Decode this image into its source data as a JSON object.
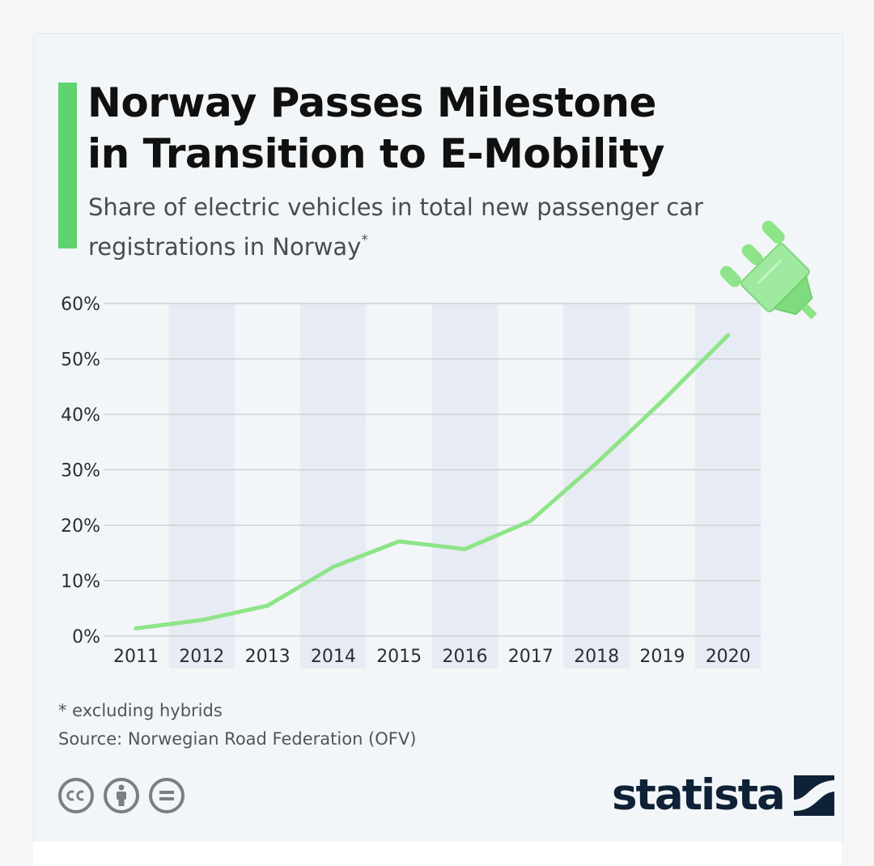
{
  "header": {
    "title_line1": "Norway Passes Milestone",
    "title_line2": "in Transition to E-Mobility",
    "subtitle_line1": "Share of electric vehicles in total new passenger car",
    "subtitle_line2": "registrations in Norway",
    "subtitle_mark": "*"
  },
  "chart_data": {
    "type": "line",
    "title": "Norway Passes Milestone in Transition to E-Mobility",
    "subtitle": "Share of electric vehicles in total new passenger car registrations in Norway*",
    "x": [
      "2011",
      "2012",
      "2013",
      "2014",
      "2015",
      "2016",
      "2017",
      "2018",
      "2019",
      "2020"
    ],
    "series": [
      {
        "values": [
          1.4,
          2.9,
          5.5,
          12.5,
          17.1,
          15.7,
          20.8,
          31.2,
          42.4,
          54.3
        ]
      }
    ],
    "y_ticks": [
      0,
      10,
      20,
      30,
      40,
      50,
      60
    ],
    "y_tick_labels": [
      "0%",
      "10%",
      "20%",
      "30%",
      "40%",
      "50%",
      "60%"
    ],
    "ylim": [
      0,
      60
    ],
    "grid": true,
    "legend": "none",
    "banded_columns": true
  },
  "footer": {
    "note": "* excluding hybrids",
    "source": "Source: Norwegian Road Federation (OFV)",
    "brand": "statista"
  },
  "colors": {
    "accent": "#5ed36f",
    "line": "#8ee489",
    "band": "#e7ebf3",
    "grid": "#c9cdd1",
    "title": "#101010",
    "brand": "#0f2136"
  },
  "icons": [
    "plug-icon",
    "cc-icon",
    "by-icon",
    "nd-icon",
    "statista-logo-icon"
  ]
}
